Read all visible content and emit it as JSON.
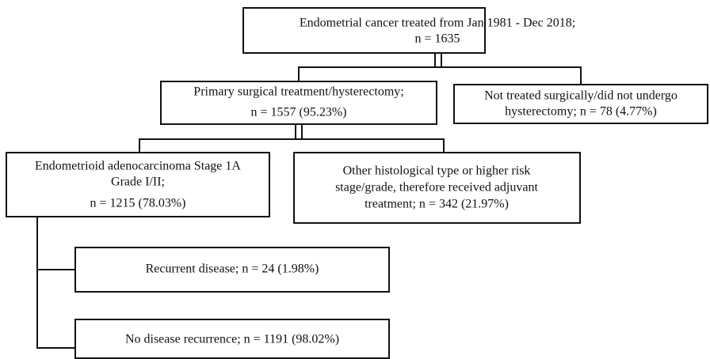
{
  "nodes": [
    {
      "lines": [
        "Endometrial cancer treated from Jan 1981 - Dec 2018;",
        "n = 1635"
      ]
    },
    {
      "lines": [
        "Primary surgical treatment/hysterectomy;",
        "n = 1557 (95.23%)"
      ]
    },
    {
      "lines": [
        "Not treated surgically/did not undergo",
        "hysterectomy; n = 78 (4.77%)"
      ]
    },
    {
      "lines": [
        "Endometrioid adenocarcinoma Stage 1A",
        "Grade I/II;",
        "n = 1215 (78.03%)"
      ]
    },
    {
      "lines": [
        "Other histological type or higher risk",
        "stage/grade, therefore received adjuvant",
        "treatment; n = 342 (21.97%)"
      ]
    },
    {
      "lines": [
        "Recurrent disease; n = 24 (1.98%)"
      ]
    },
    {
      "lines": [
        "No disease recurrence; n = 1191 (98.02%)"
      ]
    }
  ]
}
